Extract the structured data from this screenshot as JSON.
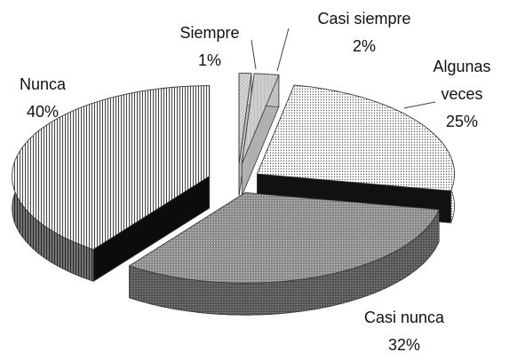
{
  "chart_data": {
    "type": "pie3d",
    "categories": [
      "Siempre",
      "Casi siempre",
      "Algunas veces",
      "Casi nunca",
      "Nunca"
    ],
    "values": [
      1,
      2,
      25,
      32,
      40
    ],
    "value_labels": [
      "1%",
      "2%",
      "25%",
      "32%",
      "40%"
    ]
  }
}
